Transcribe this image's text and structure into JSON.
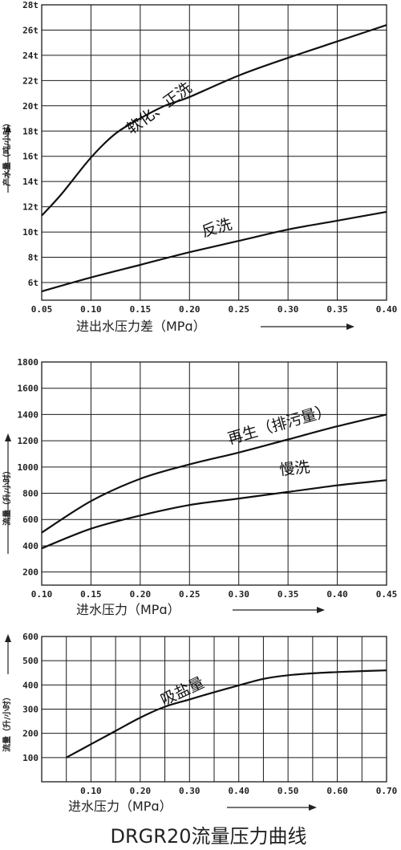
{
  "figure_title": "DRGR20流量压力曲线",
  "colors": {
    "ink": "#111111",
    "grid": "#1a1a1a",
    "background": "#ffffff"
  },
  "chart_data": [
    {
      "type": "line",
      "xlabel": "进出水压力差（MPɑ）",
      "ylabel": "产水量（吨/小时）",
      "x_ticks": [
        "0.05",
        "0.10",
        "0.15",
        "0.20",
        "0.25",
        "0.30",
        "0.35",
        "0.40"
      ],
      "y_ticks": [
        "6t",
        "8t",
        "10t",
        "12t",
        "14t",
        "16t",
        "18t",
        "20t",
        "22t",
        "24t",
        "26t",
        "28t"
      ],
      "xlim": [
        0.05,
        0.4
      ],
      "ylim": [
        4.6,
        28
      ],
      "grid": true,
      "series": [
        {
          "name": "软化、正洗",
          "x": [
            0.05,
            0.07,
            0.1,
            0.125,
            0.15,
            0.175,
            0.2,
            0.25,
            0.3,
            0.35,
            0.4
          ],
          "y": [
            11.3,
            13.0,
            15.9,
            17.8,
            19.0,
            20.0,
            20.7,
            22.4,
            23.8,
            25.1,
            26.4
          ]
        },
        {
          "name": "反洗",
          "x": [
            0.05,
            0.1,
            0.15,
            0.2,
            0.25,
            0.3,
            0.35,
            0.4
          ],
          "y": [
            5.3,
            6.4,
            7.4,
            8.4,
            9.3,
            10.2,
            10.9,
            11.6
          ]
        }
      ]
    },
    {
      "type": "line",
      "xlabel": "进水压力（MPɑ）",
      "ylabel": "流量（升/小时）",
      "x_ticks": [
        "0.10",
        "0.15",
        "0.20",
        "0.25",
        "0.30",
        "0.35",
        "0.40",
        "0.45"
      ],
      "y_ticks": [
        "200",
        "400",
        "600",
        "800",
        "1000",
        "1200",
        "1400",
        "1600",
        "1800"
      ],
      "xlim": [
        0.1,
        0.45
      ],
      "ylim": [
        100,
        1800
      ],
      "grid": true,
      "series": [
        {
          "name": "再生（排污量）",
          "x": [
            0.1,
            0.15,
            0.2,
            0.25,
            0.3,
            0.35,
            0.4,
            0.45
          ],
          "y": [
            500,
            740,
            910,
            1020,
            1110,
            1210,
            1310,
            1400
          ]
        },
        {
          "name": "慢洗",
          "x": [
            0.1,
            0.15,
            0.2,
            0.25,
            0.3,
            0.35,
            0.4,
            0.45
          ],
          "y": [
            380,
            530,
            630,
            710,
            760,
            810,
            860,
            900
          ]
        }
      ]
    },
    {
      "type": "line",
      "xlabel": "进水压力（MPɑ）",
      "ylabel": "流量（升/小时）",
      "x_ticks": [
        "0.10",
        "0.20",
        "0.30",
        "0.40",
        "0.50",
        "0.60",
        "0.70"
      ],
      "y_ticks": [
        "100",
        "200",
        "300",
        "400",
        "500",
        "600"
      ],
      "xlim": [
        0.0,
        0.7
      ],
      "ylim": [
        0,
        600
      ],
      "grid": true,
      "series": [
        {
          "name": "吸盐量",
          "x": [
            0.05,
            0.1,
            0.15,
            0.2,
            0.25,
            0.3,
            0.35,
            0.4,
            0.45,
            0.5,
            0.55,
            0.6,
            0.65,
            0.7
          ],
          "y": [
            100,
            155,
            210,
            265,
            310,
            340,
            370,
            398,
            425,
            440,
            448,
            453,
            457,
            460
          ]
        }
      ]
    }
  ]
}
